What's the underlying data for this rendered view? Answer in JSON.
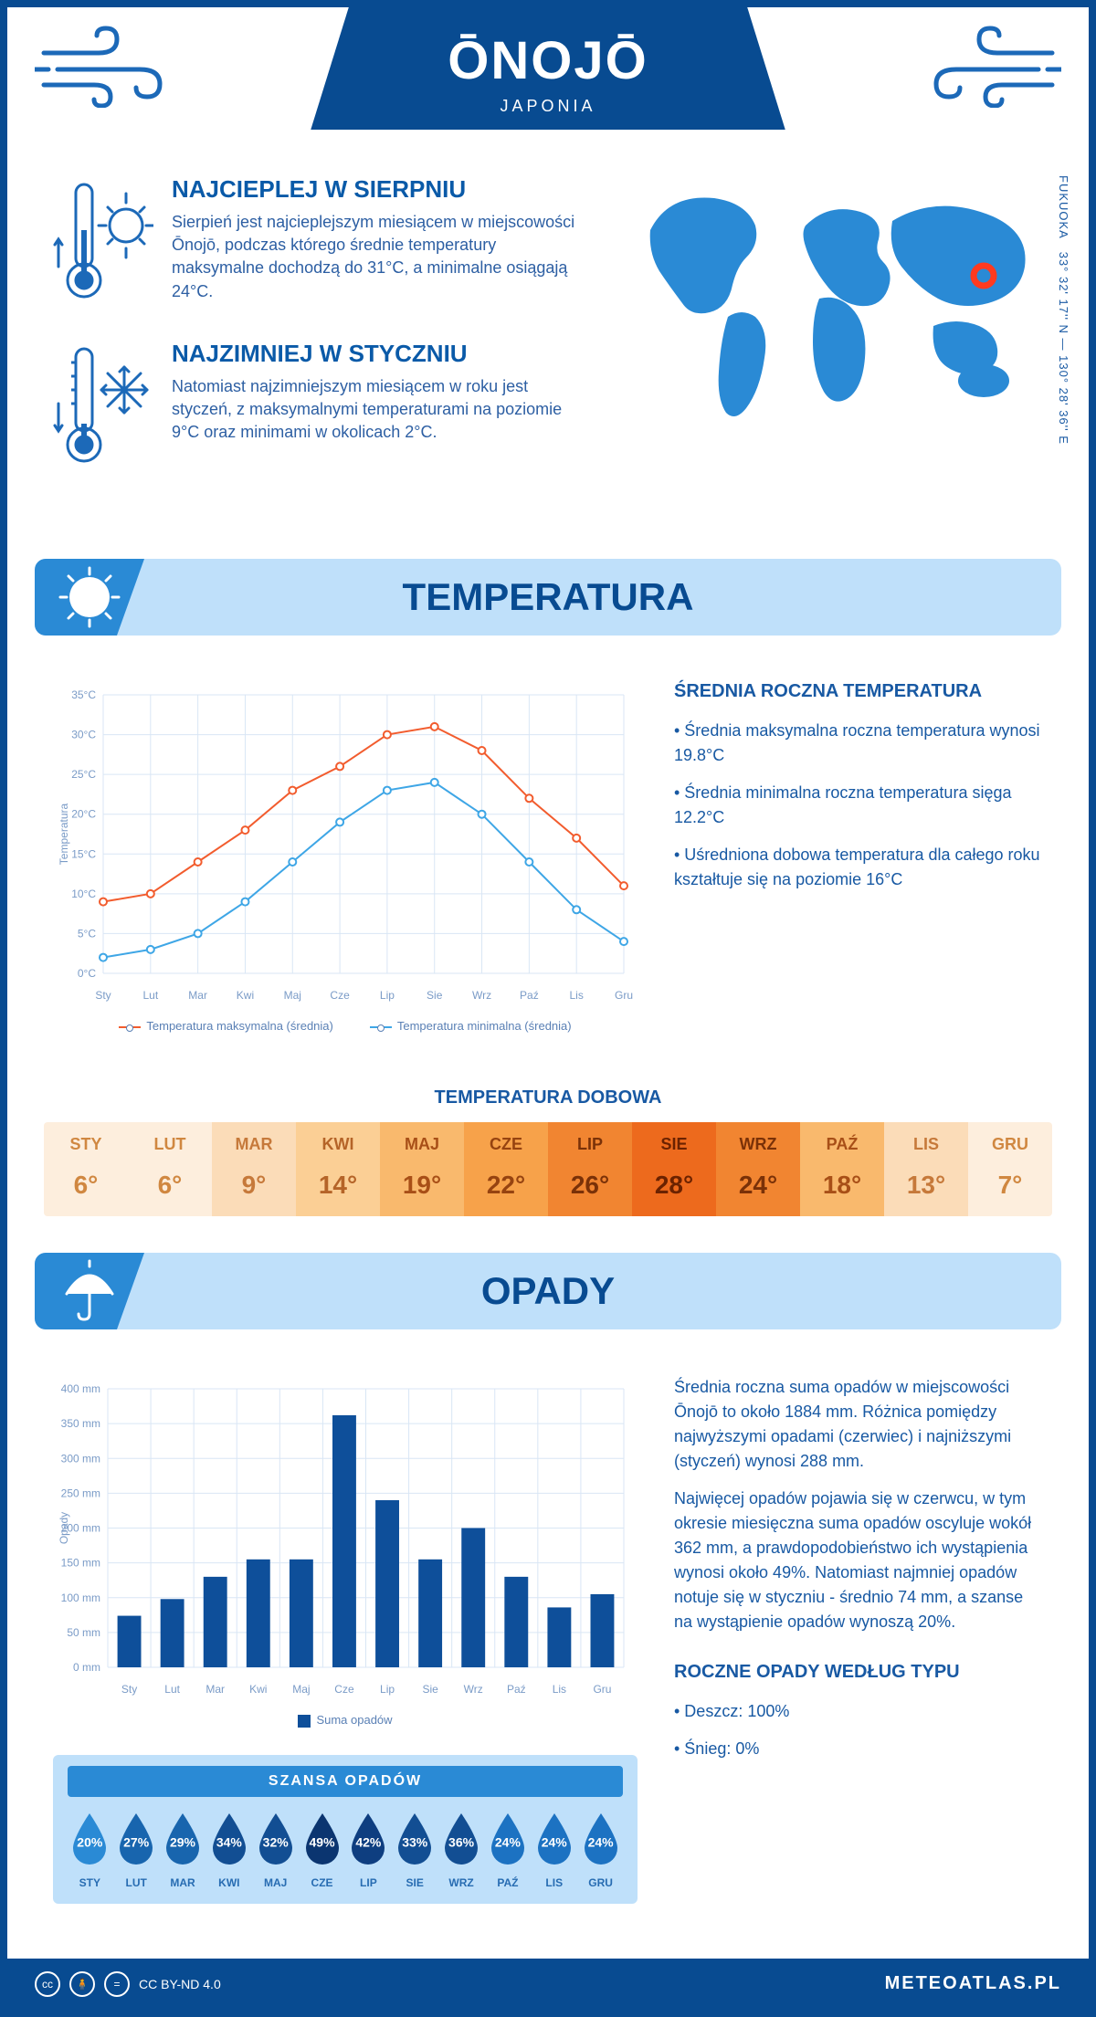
{
  "header": {
    "city": "ŌNOJŌ",
    "country": "JAPONIA"
  },
  "location": {
    "coords": "33° 32' 17'' N — 130° 28' 36'' E",
    "region": "FUKUOKA",
    "marker_color": "#ff3a1f",
    "map_color": "#2a8ad5"
  },
  "colors": {
    "primary": "#084b91",
    "accent": "#1c69b8",
    "light_panel": "#bfe0fa",
    "section_corner": "#2a8ad5"
  },
  "intro": {
    "hot": {
      "title": "NAJCIEPLEJ W SIERPNIU",
      "text": "Sierpień jest najcieplejszym miesiącem w miejscowości Ōnojō, podczas którego średnie temperatury maksymalne dochodzą do 31°C, a minimalne osiągają 24°C."
    },
    "cold": {
      "title": "NAJZIMNIEJ W STYCZNIU",
      "text": "Natomiast najzimniejszym miesiącem w roku jest styczeń, z maksymalnymi temperaturami na poziomie 9°C oraz minimami w okolicach 2°C."
    }
  },
  "temperature_section": {
    "title": "TEMPERATURA",
    "info_title": "ŚREDNIA ROCZNA TEMPERATURA",
    "bullets": [
      "• Średnia maksymalna roczna temperatura wynosi 19.8°C",
      "• Średnia minimalna roczna temperatura sięga 12.2°C",
      "• Uśredniona dobowa temperatura dla całego roku kształtuje się na poziomie 16°C"
    ],
    "chart": {
      "type": "line",
      "months": [
        "Sty",
        "Lut",
        "Mar",
        "Kwi",
        "Maj",
        "Cze",
        "Lip",
        "Sie",
        "Wrz",
        "Paź",
        "Lis",
        "Gru"
      ],
      "max_series": {
        "label": "Temperatura maksymalna (średnia)",
        "color": "#f25c2e",
        "values": [
          9,
          10,
          14,
          18,
          23,
          26,
          30,
          31,
          28,
          22,
          17,
          11
        ]
      },
      "min_series": {
        "label": "Temperatura minimalna (średnia)",
        "color": "#3ea6e6",
        "values": [
          2,
          3,
          5,
          9,
          14,
          19,
          23,
          24,
          20,
          14,
          8,
          4
        ]
      },
      "ylabel": "Temperatura",
      "ylim": [
        0,
        35
      ],
      "ytick_step": 5,
      "grid_color": "#d9e6f5",
      "label_fontsize": 12,
      "line_width": 2,
      "marker_style": "circle",
      "marker_size": 4
    },
    "daily_title": "TEMPERATURA DOBOWA",
    "daily": {
      "months": [
        "STY",
        "LUT",
        "MAR",
        "KWI",
        "MAJ",
        "CZE",
        "LIP",
        "SIE",
        "WRZ",
        "PAŹ",
        "LIS",
        "GRU"
      ],
      "values": [
        "6°",
        "6°",
        "9°",
        "14°",
        "19°",
        "22°",
        "26°",
        "28°",
        "24°",
        "18°",
        "13°",
        "7°"
      ],
      "bg_colors": [
        "#fdeedd",
        "#fdeedd",
        "#fbdcb8",
        "#fbcf95",
        "#f9b96d",
        "#f7a24a",
        "#f18531",
        "#ed6a1d",
        "#f18531",
        "#f9b96d",
        "#fbdcb8",
        "#fdeedd"
      ],
      "text_colors": [
        "#d08740",
        "#d08740",
        "#c6793a",
        "#b56428",
        "#a84f17",
        "#964310",
        "#7a3108",
        "#6b2200",
        "#7a3108",
        "#a84f17",
        "#c6793a",
        "#d08740"
      ]
    }
  },
  "precip_section": {
    "title": "OPADY",
    "paragraph1": "Średnia roczna suma opadów w miejscowości Ōnojō to około 1884 mm. Różnica pomiędzy najwyższymi opadami (czerwiec) i najniższymi (styczeń) wynosi 288 mm.",
    "paragraph2": "Najwięcej opadów pojawia się w czerwcu, w tym okresie miesięczna suma opadów oscyluje wokół 362 mm, a prawdopodobieństwo ich wystąpienia wynosi około 49%. Natomiast najmniej opadów notuje się w styczniu - średnio 74 mm, a szanse na wystąpienie opadów wynoszą 20%.",
    "chart": {
      "type": "bar",
      "months": [
        "Sty",
        "Lut",
        "Mar",
        "Kwi",
        "Maj",
        "Cze",
        "Lip",
        "Sie",
        "Wrz",
        "Paź",
        "Lis",
        "Gru"
      ],
      "values": [
        74,
        98,
        130,
        155,
        155,
        362,
        240,
        155,
        200,
        130,
        86,
        105
      ],
      "bar_color": "#0e4f9a",
      "series_label": "Suma opadów",
      "ylabel": "Opady",
      "ylim": [
        0,
        400
      ],
      "ytick_step": 50,
      "grid_color": "#d9e6f5",
      "bar_width": 0.55
    },
    "chance": {
      "header": "SZANSA OPADÓW",
      "months": [
        "STY",
        "LUT",
        "MAR",
        "KWI",
        "MAJ",
        "CZE",
        "LIP",
        "SIE",
        "WRZ",
        "PAŹ",
        "LIS",
        "GRU"
      ],
      "percents": [
        "20%",
        "27%",
        "29%",
        "34%",
        "32%",
        "49%",
        "42%",
        "33%",
        "36%",
        "24%",
        "24%",
        "24%"
      ],
      "drop_colors": [
        "#2a8ad5",
        "#1865ae",
        "#1865ae",
        "#124e93",
        "#124e93",
        "#0b3570",
        "#0e3e80",
        "#124e93",
        "#124e93",
        "#1c72c2",
        "#1c72c2",
        "#1c72c2"
      ]
    },
    "by_type": {
      "title": "ROCZNE OPADY WEDŁUG TYPU",
      "lines": [
        "• Deszcz: 100%",
        "• Śnieg: 0%"
      ]
    }
  },
  "footer": {
    "license": "CC BY-ND 4.0",
    "site": "METEOATLAS.PL"
  }
}
